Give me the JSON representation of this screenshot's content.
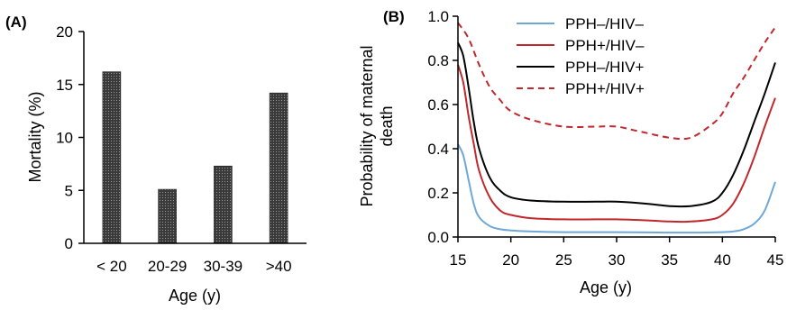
{
  "chart_data": [
    {
      "panel_label": "(A)",
      "type": "bar",
      "categories": [
        "< 20",
        "20-29",
        "30-39",
        ">40"
      ],
      "values": [
        16.2,
        5.1,
        7.3,
        14.2
      ],
      "title": "",
      "xlabel": "Age (y)",
      "ylabel": "Mortality (%)",
      "ylim": [
        0,
        20
      ],
      "yticks": [
        0,
        5,
        10,
        15,
        20
      ],
      "grid": false,
      "bar_color": "#3a3a3a"
    },
    {
      "panel_label": "(B)",
      "type": "line",
      "title": "",
      "xlabel": "Age (y)",
      "ylabel": [
        "Probability of maternal",
        "death"
      ],
      "xlim": [
        15,
        45
      ],
      "ylim": [
        0,
        1
      ],
      "xticks": [
        15,
        20,
        25,
        30,
        35,
        40,
        45
      ],
      "yticks": [
        "0.0",
        "0.2",
        "0.4",
        "0.6",
        "0.8",
        "1.0"
      ],
      "grid": false,
      "legend_position": "top-right",
      "series": [
        {
          "name": "PPH–/HIV–",
          "color": "#6fa8d6",
          "style": "solid",
          "x": [
            15,
            15.5,
            16,
            16.5,
            17,
            18,
            19,
            20,
            22,
            25,
            28,
            30,
            33,
            35,
            38,
            40,
            41,
            42,
            43,
            44,
            45
          ],
          "y": [
            0.42,
            0.37,
            0.26,
            0.15,
            0.09,
            0.05,
            0.035,
            0.03,
            0.025,
            0.022,
            0.022,
            0.022,
            0.021,
            0.02,
            0.02,
            0.022,
            0.025,
            0.035,
            0.06,
            0.12,
            0.25
          ]
        },
        {
          "name": "PPH+/HIV–",
          "color": "#c0282d",
          "style": "solid",
          "x": [
            15,
            15.5,
            16,
            16.5,
            17,
            18,
            19,
            20,
            22,
            25,
            28,
            30,
            33,
            35,
            37,
            39,
            40,
            41,
            42,
            43,
            44,
            45
          ],
          "y": [
            0.78,
            0.7,
            0.55,
            0.42,
            0.3,
            0.18,
            0.12,
            0.1,
            0.085,
            0.08,
            0.08,
            0.08,
            0.075,
            0.07,
            0.07,
            0.08,
            0.1,
            0.15,
            0.24,
            0.36,
            0.5,
            0.63
          ]
        },
        {
          "name": "PPH–/HIV+",
          "color": "#000000",
          "style": "solid",
          "x": [
            15,
            15.5,
            16,
            16.5,
            17,
            18,
            19,
            20,
            22,
            25,
            28,
            30,
            33,
            35,
            37,
            39,
            40,
            41,
            42,
            43,
            44,
            45
          ],
          "y": [
            0.88,
            0.82,
            0.68,
            0.52,
            0.4,
            0.27,
            0.21,
            0.18,
            0.165,
            0.16,
            0.16,
            0.16,
            0.15,
            0.14,
            0.14,
            0.16,
            0.2,
            0.28,
            0.39,
            0.52,
            0.65,
            0.79
          ]
        },
        {
          "name": "PPH+/HIV+",
          "color": "#c0282d",
          "style": "dashed",
          "x": [
            15,
            16,
            17,
            18,
            19,
            20,
            22,
            25,
            28,
            30,
            32,
            35,
            37,
            39,
            40,
            41,
            42,
            43,
            44,
            45
          ],
          "y": [
            0.97,
            0.9,
            0.78,
            0.68,
            0.62,
            0.57,
            0.53,
            0.5,
            0.5,
            0.5,
            0.48,
            0.45,
            0.45,
            0.51,
            0.56,
            0.65,
            0.72,
            0.8,
            0.88,
            0.95
          ]
        }
      ]
    }
  ]
}
